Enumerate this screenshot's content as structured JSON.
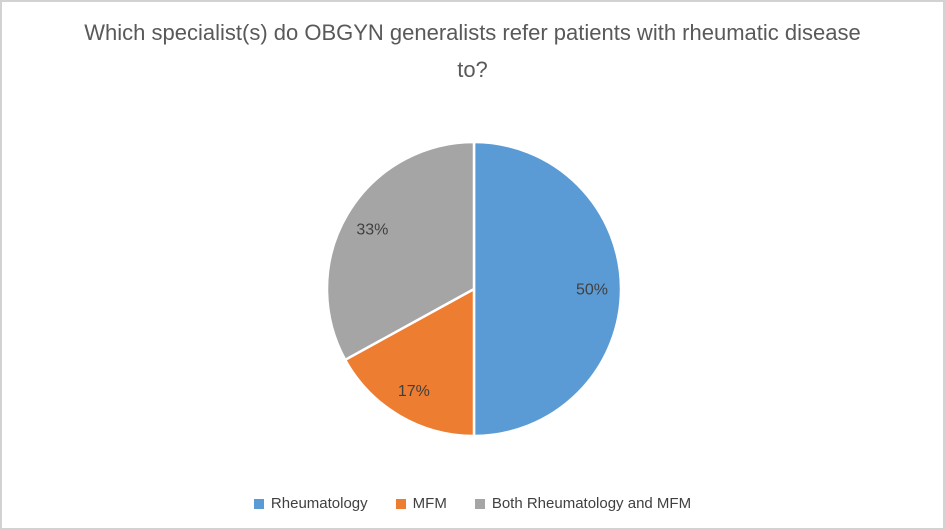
{
  "frame": {
    "background_color": "#ffffff",
    "border_color": "#d2d2d2"
  },
  "chart_data": {
    "type": "pie",
    "title": "Which specialist(s) do OBGYN generalists refer patients with rheumatic disease to?",
    "title_color": "#595959",
    "data_label_color": "#404040",
    "legend_text_color": "#404040",
    "legend_position": "bottom",
    "start_angle_deg": 0,
    "direction": "clockwise",
    "categories": [
      "Rheumatology",
      "MFM",
      "Both Rheumatology and MFM"
    ],
    "values": [
      50,
      17,
      33
    ],
    "slices": [
      {
        "label": "Rheumatology",
        "value": 50,
        "display": "50%",
        "color": "#5B9BD5"
      },
      {
        "label": "MFM",
        "value": 17,
        "display": "17%",
        "color": "#ED7D31"
      },
      {
        "label": "Both Rheumatology and MFM",
        "value": 33,
        "display": "33%",
        "color": "#A5A5A5"
      }
    ]
  }
}
